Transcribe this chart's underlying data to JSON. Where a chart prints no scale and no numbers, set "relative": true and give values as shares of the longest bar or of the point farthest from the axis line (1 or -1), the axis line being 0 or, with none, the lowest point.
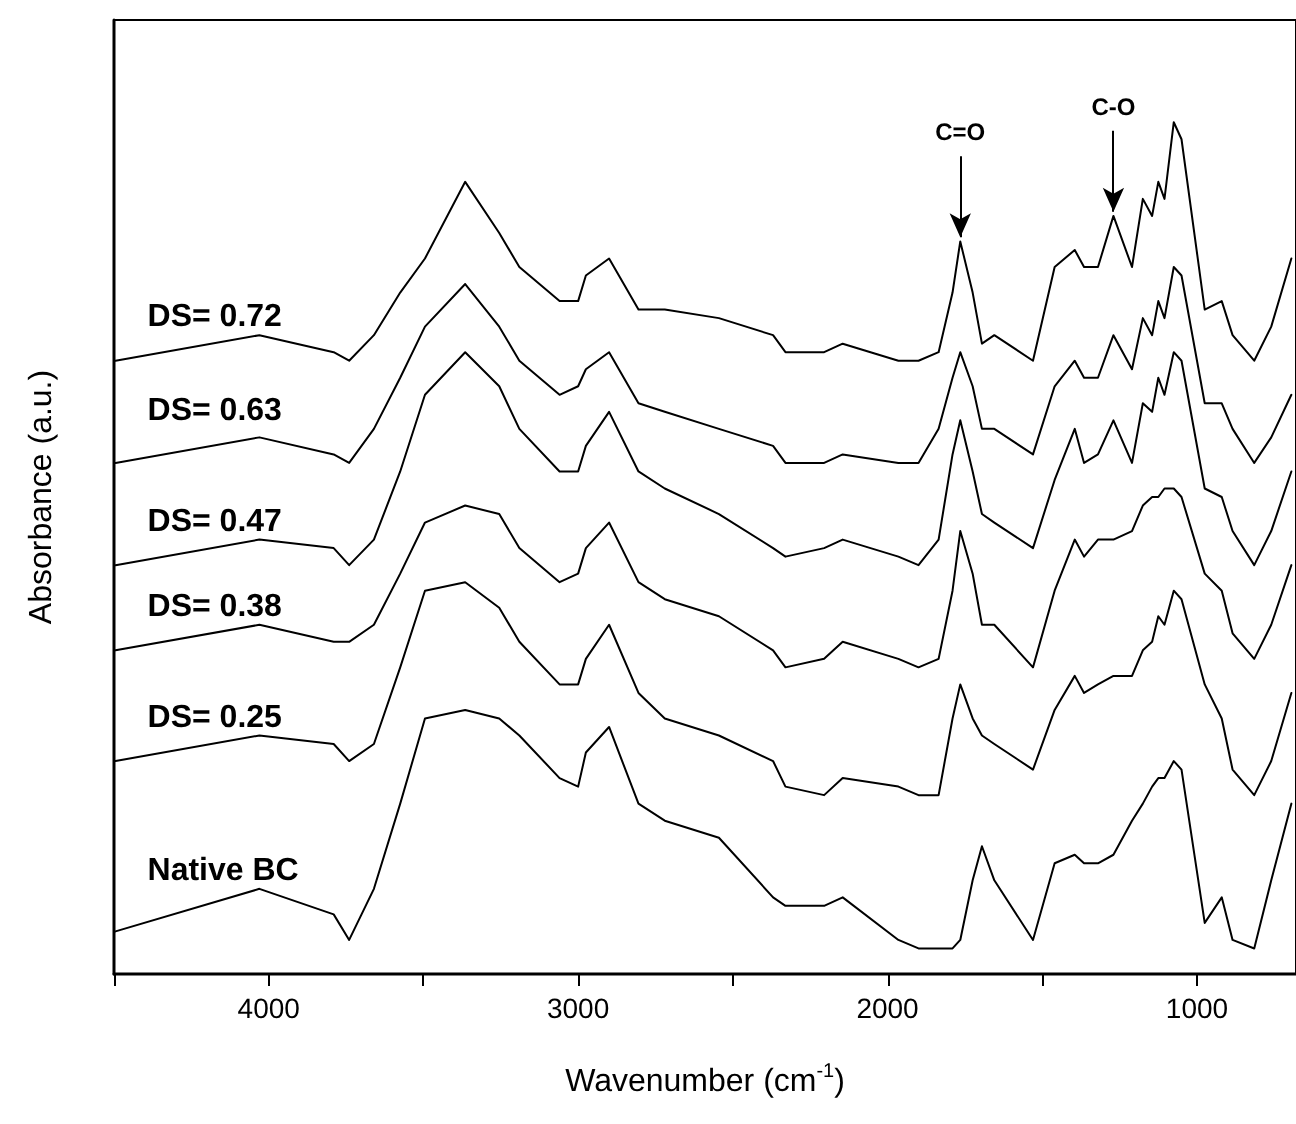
{
  "chart_data": {
    "type": "line",
    "relative": true,
    "xlabel": "Wavenumber (cm$^{-1}$)",
    "ylabel": "Absorbance (a.u.)",
    "x": [
      4495,
      4030,
      3790,
      3740,
      3660,
      3575,
      3495,
      3365,
      3255,
      3190,
      3060,
      3000,
      2975,
      2900,
      2805,
      2720,
      2545,
      2370,
      2330,
      2205,
      2145,
      1965,
      1900,
      1835,
      1790,
      1765,
      1725,
      1695,
      1655,
      1530,
      1460,
      1395,
      1365,
      1320,
      1270,
      1210,
      1175,
      1145,
      1125,
      1105,
      1075,
      1050,
      975,
      920,
      885,
      815,
      760,
      695
    ],
    "xlim": [
      4500,
      680
    ],
    "xticks": [
      {
        "value": 4500,
        "label": null
      },
      4000,
      {
        "value": 3500,
        "label": null
      },
      3000,
      {
        "value": 2500,
        "label": null
      },
      2000,
      {
        "value": 1500,
        "label": null
      },
      1000
    ],
    "series": [
      {
        "name": "DS= 0.72",
        "color": "#000000",
        "values": [
          0.72,
          0.75,
          0.73,
          0.72,
          0.75,
          0.8,
          0.84,
          0.93,
          0.87,
          0.83,
          0.79,
          0.79,
          0.82,
          0.84,
          0.78,
          0.78,
          0.77,
          0.75,
          0.73,
          0.73,
          0.74,
          0.72,
          0.72,
          0.73,
          0.8,
          0.86,
          0.8,
          0.74,
          0.75,
          0.72,
          0.83,
          0.85,
          0.83,
          0.83,
          0.89,
          0.83,
          0.91,
          0.89,
          0.93,
          0.91,
          1.0,
          0.98,
          0.78,
          0.79,
          0.75,
          0.72,
          0.76,
          0.84
        ]
      },
      {
        "name": "DS= 0.63",
        "color": "#000000",
        "values": [
          0.6,
          0.63,
          0.61,
          0.6,
          0.64,
          0.7,
          0.76,
          0.81,
          0.76,
          0.72,
          0.68,
          0.69,
          0.71,
          0.73,
          0.67,
          0.66,
          0.64,
          0.62,
          0.6,
          0.6,
          0.61,
          0.6,
          0.6,
          0.64,
          0.7,
          0.73,
          0.69,
          0.64,
          0.64,
          0.61,
          0.69,
          0.72,
          0.7,
          0.7,
          0.75,
          0.71,
          0.77,
          0.75,
          0.79,
          0.77,
          0.83,
          0.82,
          0.67,
          0.67,
          0.64,
          0.6,
          0.63,
          0.68
        ]
      },
      {
        "name": "DS= 0.47",
        "color": "#000000",
        "values": [
          0.48,
          0.51,
          0.5,
          0.48,
          0.51,
          0.59,
          0.68,
          0.73,
          0.69,
          0.64,
          0.59,
          0.59,
          0.62,
          0.66,
          0.59,
          0.57,
          0.54,
          0.5,
          0.49,
          0.5,
          0.51,
          0.49,
          0.48,
          0.51,
          0.61,
          0.65,
          0.59,
          0.54,
          0.53,
          0.5,
          0.58,
          0.64,
          0.6,
          0.61,
          0.65,
          0.6,
          0.67,
          0.66,
          0.7,
          0.68,
          0.73,
          0.72,
          0.57,
          0.56,
          0.52,
          0.48,
          0.52,
          0.59
        ]
      },
      {
        "name": "DS= 0.38",
        "color": "#000000",
        "values": [
          0.38,
          0.41,
          0.39,
          0.39,
          0.41,
          0.47,
          0.53,
          0.55,
          0.54,
          0.5,
          0.46,
          0.47,
          0.5,
          0.53,
          0.46,
          0.44,
          0.42,
          0.38,
          0.36,
          0.37,
          0.39,
          0.37,
          0.36,
          0.37,
          0.45,
          0.52,
          0.47,
          0.41,
          0.41,
          0.36,
          0.45,
          0.51,
          0.49,
          0.51,
          0.51,
          0.52,
          0.55,
          0.56,
          0.56,
          0.57,
          0.57,
          0.56,
          0.47,
          0.45,
          0.4,
          0.37,
          0.41,
          0.48
        ]
      },
      {
        "name": "DS= 0.25",
        "color": "#000000",
        "values": [
          0.25,
          0.28,
          0.27,
          0.25,
          0.27,
          0.36,
          0.45,
          0.46,
          0.43,
          0.39,
          0.34,
          0.34,
          0.37,
          0.41,
          0.33,
          0.3,
          0.28,
          0.25,
          0.22,
          0.21,
          0.23,
          0.22,
          0.21,
          0.21,
          0.3,
          0.34,
          0.3,
          0.28,
          0.27,
          0.24,
          0.31,
          0.35,
          0.33,
          0.34,
          0.35,
          0.35,
          0.38,
          0.39,
          0.42,
          0.41,
          0.45,
          0.44,
          0.34,
          0.3,
          0.24,
          0.21,
          0.25,
          0.33
        ]
      },
      {
        "name": "Native BC",
        "color": "#000000",
        "values": [
          0.05,
          0.1,
          0.07,
          0.04,
          0.1,
          0.2,
          0.3,
          0.31,
          0.3,
          0.28,
          0.23,
          0.22,
          0.26,
          0.29,
          0.2,
          0.18,
          0.16,
          0.09,
          0.08,
          0.08,
          0.09,
          0.04,
          0.03,
          0.03,
          0.03,
          0.04,
          0.11,
          0.15,
          0.11,
          0.04,
          0.13,
          0.14,
          0.13,
          0.13,
          0.14,
          0.18,
          0.2,
          0.22,
          0.23,
          0.23,
          0.25,
          0.24,
          0.06,
          0.09,
          0.04,
          0.03,
          0.11,
          0.2
        ]
      }
    ],
    "annotations": [
      {
        "text": "C=O",
        "x": 1765,
        "y": 0.86
      },
      {
        "text": "C-O",
        "x": 1270,
        "y": 0.89
      }
    ],
    "legend": false,
    "marker": "none",
    "line_style": "solid"
  }
}
